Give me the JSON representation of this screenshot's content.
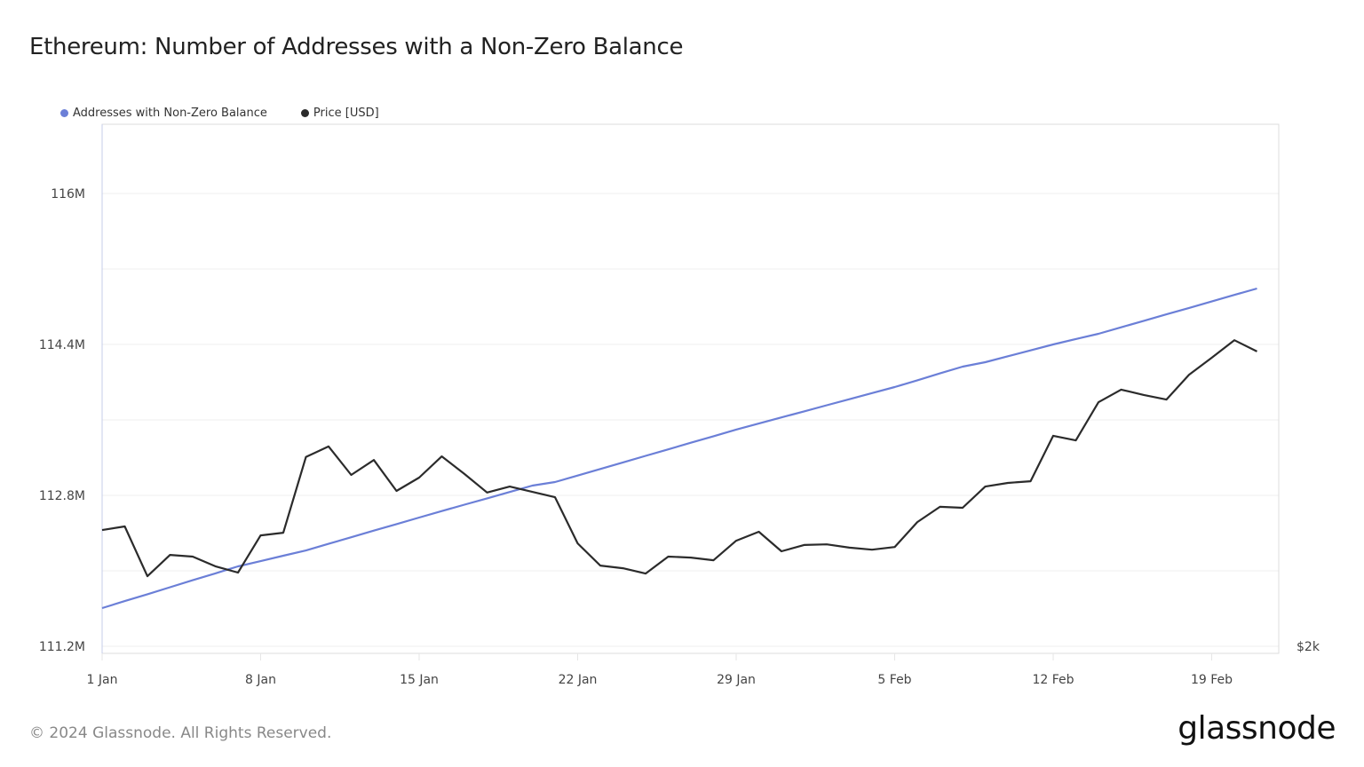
{
  "chart_data": {
    "type": "line",
    "title": "Ethereum: Number of Addresses with a Non-Zero Balance",
    "x_start": "2024-01-01",
    "x_tick_labels": [
      "1 Jan",
      "8 Jan",
      "15 Jan",
      "22 Jan",
      "29 Jan",
      "5 Feb",
      "12 Feb",
      "19 Feb"
    ],
    "x_tick_days": [
      0,
      7,
      14,
      21,
      28,
      35,
      42,
      49
    ],
    "y_left": {
      "label": "",
      "ticks": [
        111.2,
        112.8,
        114.4,
        116.0
      ],
      "tick_labels": [
        "111.2M",
        "112.8M",
        "114.4M",
        "116M"
      ],
      "range": [
        111.2,
        116.7
      ],
      "unit": "M"
    },
    "y_right": {
      "ticks": [
        2000
      ],
      "tick_labels": [
        "$2k"
      ],
      "range": [
        2000,
        3572
      ]
    },
    "grid": true,
    "legend_position": "top-left",
    "series": [
      {
        "name": "Addresses with Non-Zero Balance",
        "axis": "left",
        "color": "#6b7fd7",
        "values": [
          111.605,
          111.679,
          111.752,
          111.826,
          111.9,
          111.973,
          112.047,
          112.103,
          112.16,
          112.216,
          112.286,
          112.356,
          112.426,
          112.495,
          112.565,
          112.633,
          112.701,
          112.768,
          112.836,
          112.904,
          112.941,
          113.01,
          113.08,
          113.149,
          113.219,
          113.288,
          113.358,
          113.427,
          113.497,
          113.561,
          113.626,
          113.69,
          113.755,
          113.819,
          113.884,
          113.948,
          114.02,
          114.093,
          114.165,
          114.212,
          114.275,
          114.337,
          114.4,
          114.457,
          114.513,
          114.582,
          114.65,
          114.719,
          114.787,
          114.856,
          114.925,
          114.993
        ]
      },
      {
        "name": "Price [USD]",
        "axis": "right",
        "color": "#2b2b2b",
        "values": [
          2350,
          2361,
          2211,
          2275,
          2270,
          2241,
          2222,
          2334,
          2342,
          2570,
          2602,
          2516,
          2561,
          2468,
          2508,
          2572,
          2519,
          2463,
          2481,
          2465,
          2449,
          2310,
          2243,
          2235,
          2219,
          2270,
          2267,
          2259,
          2318,
          2345,
          2286,
          2305,
          2307,
          2297,
          2291,
          2299,
          2374,
          2420,
          2417,
          2481,
          2492,
          2497,
          2634,
          2620,
          2735,
          2773,
          2757,
          2743,
          2818,
          2869,
          2922,
          2888
        ]
      }
    ]
  },
  "footer": "© 2024 Glassnode. All Rights Reserved.",
  "logo": "glassnode"
}
